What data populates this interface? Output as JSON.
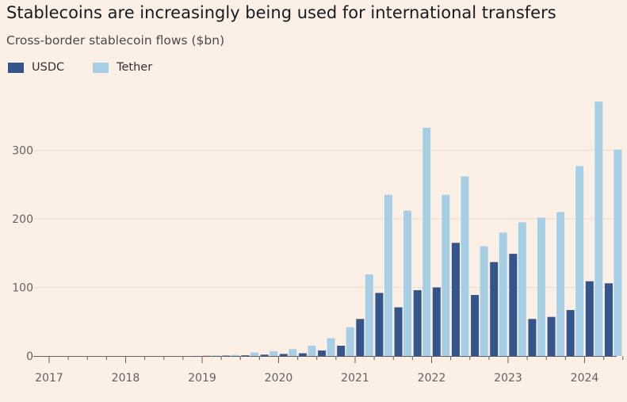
{
  "header": {
    "title": "Stablecoins are increasingly being used for international transfers",
    "subtitle": "Cross-border stablecoin flows ($bn)"
  },
  "colors": {
    "usdc": "#34558b",
    "tether": "#a6cfe6",
    "background": "#fcf0e6",
    "axis": "#66605c",
    "grid": "#ecdcd0"
  },
  "chart_data": {
    "type": "bar",
    "title": "Stablecoins are increasingly being used for international transfers",
    "subtitle": "Cross-border stablecoin flows ($bn)",
    "xlabel": "",
    "ylabel": "",
    "ylim": [
      0,
      380
    ],
    "yticks": [
      0,
      100,
      200,
      300
    ],
    "ytick_labels": [
      "0",
      "100",
      "200",
      "300"
    ],
    "x_tick_labels": [
      "2017",
      "2018",
      "2019",
      "2020",
      "2021",
      "2022",
      "2023",
      "2024"
    ],
    "legend_position": "top-left",
    "grid": true,
    "categories": [
      "2017 Q1",
      "2017 Q2",
      "2017 Q3",
      "2017 Q4",
      "2018 Q1",
      "2018 Q2",
      "2018 Q3",
      "2018 Q4",
      "2019 Q1",
      "2019 Q2",
      "2019 Q3",
      "2019 Q4",
      "2020 Q1",
      "2020 Q2",
      "2020 Q3",
      "2020 Q4",
      "2021 Q1",
      "2021 Q2",
      "2021 Q3",
      "2021 Q4",
      "2022 Q1",
      "2022 Q2",
      "2022 Q3",
      "2022 Q4",
      "2023 Q1",
      "2023 Q2",
      "2023 Q3",
      "2023 Q4",
      "2024 Q1",
      "2024 Q2"
    ],
    "series": [
      {
        "name": "USDC",
        "values": [
          0,
          0,
          0,
          0,
          0,
          0,
          0,
          0,
          0.3,
          0.6,
          1,
          2,
          3,
          4,
          8,
          15,
          54,
          92,
          71,
          96,
          100,
          165,
          89,
          137,
          149,
          54,
          57,
          67,
          109,
          106
        ]
      },
      {
        "name": "Tether",
        "values": [
          0,
          0,
          0,
          0,
          0,
          0,
          0,
          0.3,
          1,
          1.5,
          5,
          7,
          10,
          15,
          26,
          42,
          119,
          235,
          212,
          333,
          235,
          262,
          160,
          180,
          195,
          202,
          210,
          277,
          371,
          301
        ]
      }
    ]
  }
}
